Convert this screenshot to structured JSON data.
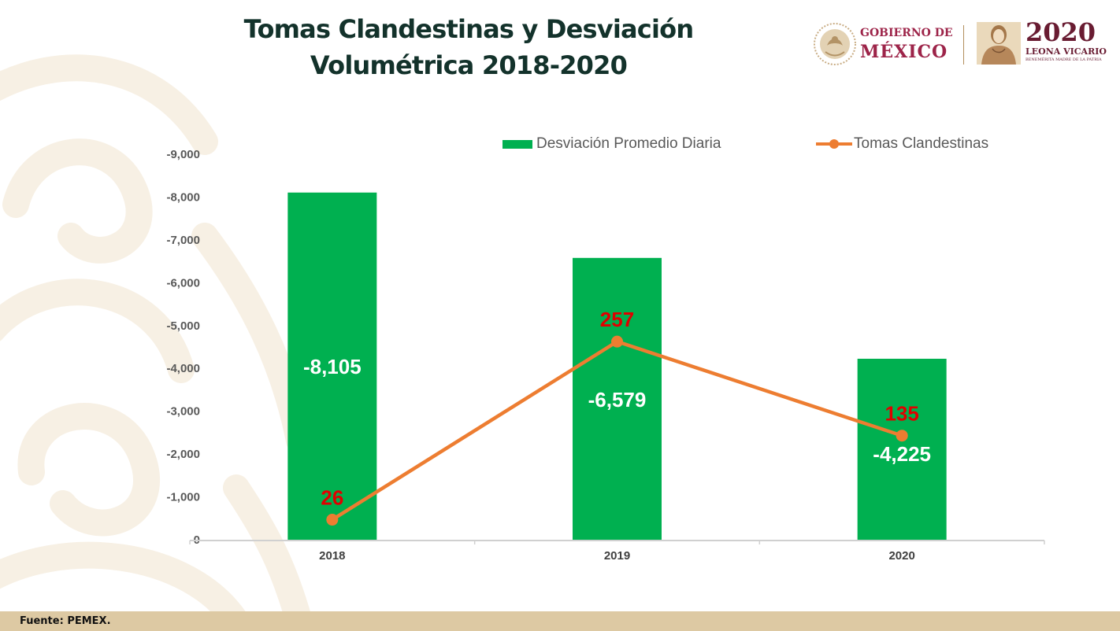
{
  "header": {
    "title_line1": "Tomas Clandestinas y Desviación",
    "title_line2": "Volumétrica 2018-2020",
    "logo_gobierno_line1": "GOBIERNO DE",
    "logo_gobierno_line2": "MÉXICO",
    "logo_year": "2020",
    "logo_leona": "LEONA VICARIO",
    "logo_leona_sub": "BENEMÉRITA MADRE DE LA PATRIA"
  },
  "footer": {
    "source": "Fuente: PEMEX."
  },
  "colors": {
    "bar": "#00b050",
    "line": "#ed7d31",
    "line_label": "#e00000",
    "title": "#13322b",
    "footer_bg": "#ddc9a3"
  },
  "chart_data": {
    "type": "bar",
    "title": "Tomas Clandestinas y Desviación Volumétrica 2018-2020",
    "categories": [
      "2018",
      "2019",
      "2020"
    ],
    "series": [
      {
        "name": "Desviación Promedio Diaria",
        "type": "bar",
        "axis": "left",
        "values": [
          -8105,
          -6579,
          -4225
        ],
        "labels": [
          "-8,105",
          "-6,579",
          "-4,225"
        ]
      },
      {
        "name": "Tomas Clandestinas",
        "type": "line",
        "axis": "right",
        "values": [
          26,
          257,
          135
        ],
        "labels": [
          "26",
          "257",
          "135"
        ]
      }
    ],
    "left_axis": {
      "range": [
        0,
        -9000
      ],
      "ticks": [
        "-9,000",
        "-8,000",
        "-7,000",
        "-6,000",
        "-5,000",
        "-4,000",
        "-3,000",
        "-2,000",
        "-1,000",
        "0"
      ],
      "tick_values": [
        -9000,
        -8000,
        -7000,
        -6000,
        -5000,
        -4000,
        -3000,
        -2000,
        -1000,
        0
      ],
      "inverted": true
    },
    "right_axis": {
      "range": [
        0,
        500
      ]
    },
    "legend": {
      "position": "top-right",
      "entries": [
        "Desviación Promedio Diaria",
        "Tomas Clandestinas"
      ]
    },
    "grid": false
  }
}
